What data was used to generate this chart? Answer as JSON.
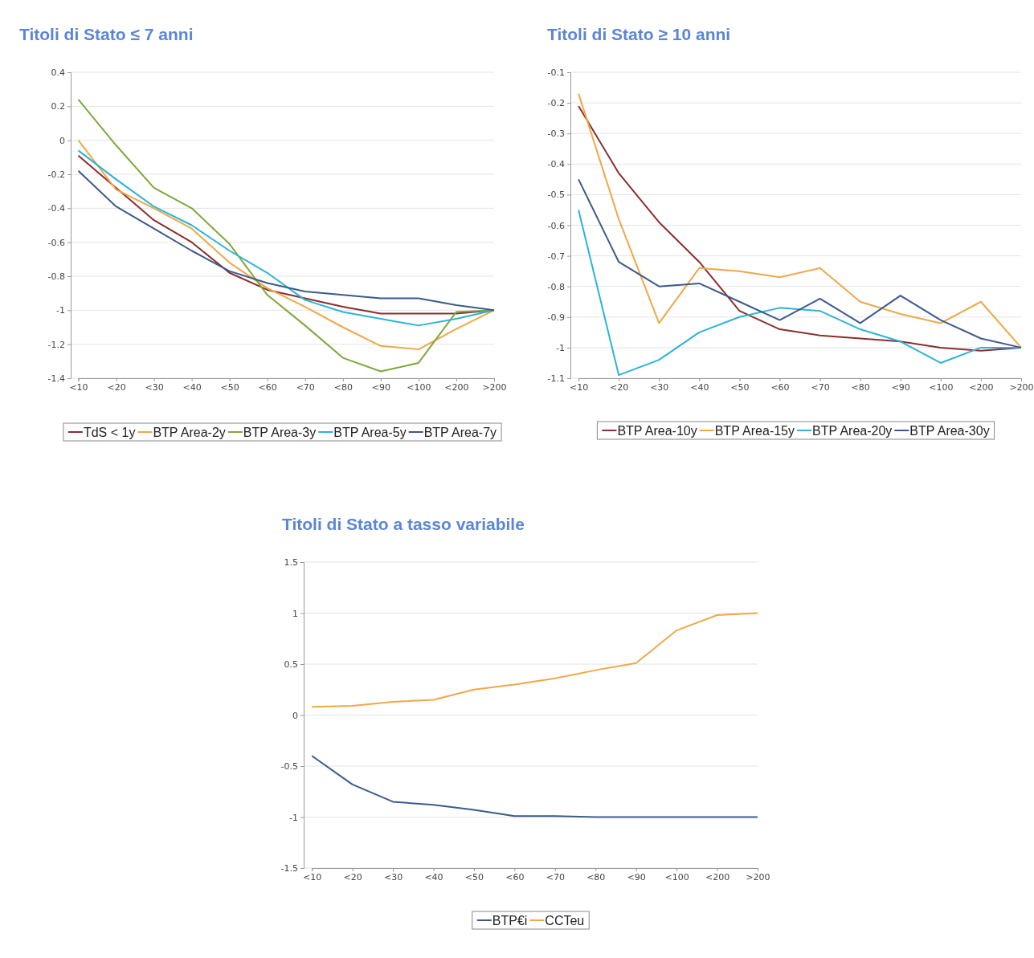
{
  "chart_data": [
    {
      "type": "line",
      "title": "Titoli di Stato ≤ 7 anni",
      "categories": [
        "<10",
        "<20",
        "<30",
        "<40",
        "<50",
        "<60",
        "<70",
        "<80",
        "<90",
        "<100",
        "<200",
        ">200"
      ],
      "ylim": [
        -1.4,
        0.4
      ],
      "yticks": [
        -1.4,
        -1.2,
        -1,
        -0.8,
        -0.6,
        -0.4,
        -0.2,
        0,
        0.2,
        0.4
      ],
      "grid": "y",
      "legend": "bottom",
      "series": [
        {
          "name": "TdS < 1y",
          "color": "#8b2e2e",
          "values": [
            -0.09,
            -0.28,
            -0.47,
            -0.6,
            -0.78,
            -0.88,
            -0.93,
            -0.98,
            -1.02,
            -1.02,
            -1.02,
            -1.0
          ]
        },
        {
          "name": "BTP Area-2y",
          "color": "#f0a848",
          "values": [
            0.0,
            -0.29,
            -0.4,
            -0.52,
            -0.72,
            -0.87,
            -0.98,
            -1.1,
            -1.21,
            -1.23,
            -1.11,
            -1.0
          ]
        },
        {
          "name": "BTP Area-3y",
          "color": "#7fa83c",
          "values": [
            0.24,
            -0.03,
            -0.28,
            -0.4,
            -0.61,
            -0.91,
            -1.09,
            -1.28,
            -1.36,
            -1.31,
            -1.01,
            -1.0
          ]
        },
        {
          "name": "BTP Area-5y",
          "color": "#2ab4d8",
          "values": [
            -0.06,
            -0.23,
            -0.39,
            -0.5,
            -0.65,
            -0.78,
            -0.94,
            -1.01,
            -1.05,
            -1.09,
            -1.05,
            -1.0
          ]
        },
        {
          "name": "BTP Area-7y",
          "color": "#3c5a8c",
          "values": [
            -0.18,
            -0.39,
            -0.52,
            -0.65,
            -0.77,
            -0.84,
            -0.89,
            -0.91,
            -0.93,
            -0.93,
            -0.97,
            -1.0
          ]
        }
      ]
    },
    {
      "type": "line",
      "title": "Titoli di Stato ≥ 10 anni",
      "categories": [
        "<10",
        "<20",
        "<30",
        "<40",
        "<50",
        "<60",
        "<70",
        "<80",
        "<90",
        "<100",
        "<200",
        ">200"
      ],
      "ylim": [
        -1.1,
        -0.1
      ],
      "yticks": [
        -1.1,
        -1,
        -0.9,
        -0.8,
        -0.7,
        -0.6,
        -0.5,
        -0.4,
        -0.3,
        -0.2,
        -0.1
      ],
      "grid": "y",
      "legend": "bottom",
      "series": [
        {
          "name": "BTP Area-10y",
          "color": "#8b2e2e",
          "values": [
            -0.21,
            -0.43,
            -0.59,
            -0.72,
            -0.88,
            -0.94,
            -0.96,
            -0.97,
            -0.98,
            -1.0,
            -1.01,
            -1.0
          ]
        },
        {
          "name": "BTP Area-15y",
          "color": "#f0a848",
          "values": [
            -0.17,
            -0.58,
            -0.92,
            -0.74,
            -0.75,
            -0.77,
            -0.74,
            -0.85,
            -0.89,
            -0.92,
            -0.85,
            -1.0
          ]
        },
        {
          "name": "BTP Area-20y",
          "color": "#2ab4d8",
          "values": [
            -0.55,
            -1.09,
            -1.04,
            -0.95,
            -0.9,
            -0.87,
            -0.88,
            -0.94,
            -0.98,
            -1.05,
            -1.0,
            -1.0
          ]
        },
        {
          "name": "BTP Area-30y",
          "color": "#3c5a8c",
          "values": [
            -0.45,
            -0.72,
            -0.8,
            -0.79,
            -0.85,
            -0.91,
            -0.84,
            -0.92,
            -0.83,
            -0.91,
            -0.97,
            -1.0
          ]
        }
      ]
    },
    {
      "type": "line",
      "title": "Titoli di Stato a tasso variabile",
      "categories": [
        "<10",
        "<20",
        "<30",
        "<40",
        "<50",
        "<60",
        "<70",
        "<80",
        "<90",
        "<100",
        "<200",
        ">200"
      ],
      "ylim": [
        -1.5,
        1.5
      ],
      "yticks": [
        -1.5,
        -1,
        -0.5,
        0,
        0.5,
        1,
        1.5
      ],
      "grid": "y",
      "legend": "bottom",
      "series": [
        {
          "name": "BTP€i",
          "color": "#3c5a8c",
          "values": [
            -0.4,
            -0.68,
            -0.85,
            -0.88,
            -0.93,
            -0.99,
            -0.99,
            -1.0,
            -1.0,
            -1.0,
            -1.0,
            -1.0
          ]
        },
        {
          "name": "CCTeu",
          "color": "#f0a848",
          "values": [
            0.08,
            0.09,
            0.13,
            0.15,
            0.25,
            0.3,
            0.36,
            0.44,
            0.51,
            0.83,
            0.98,
            1.0
          ]
        }
      ]
    }
  ]
}
